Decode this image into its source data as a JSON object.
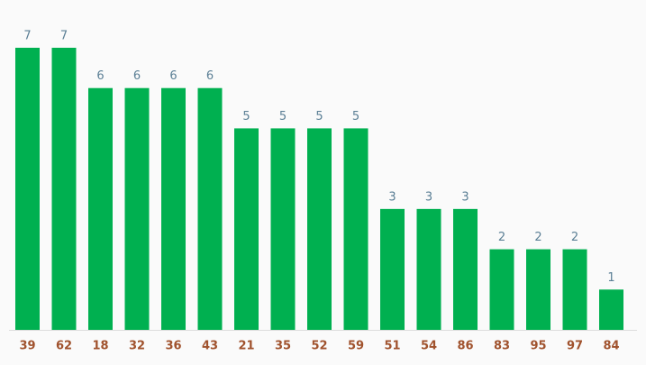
{
  "chart_data": {
    "type": "bar",
    "categories": [
      "39",
      "62",
      "18",
      "32",
      "36",
      "43",
      "21",
      "35",
      "52",
      "59",
      "51",
      "54",
      "86",
      "83",
      "95",
      "97",
      "84"
    ],
    "values": [
      7,
      7,
      6,
      6,
      6,
      6,
      5,
      5,
      5,
      5,
      3,
      3,
      3,
      2,
      2,
      2,
      1
    ],
    "color": "#00b050"
  }
}
